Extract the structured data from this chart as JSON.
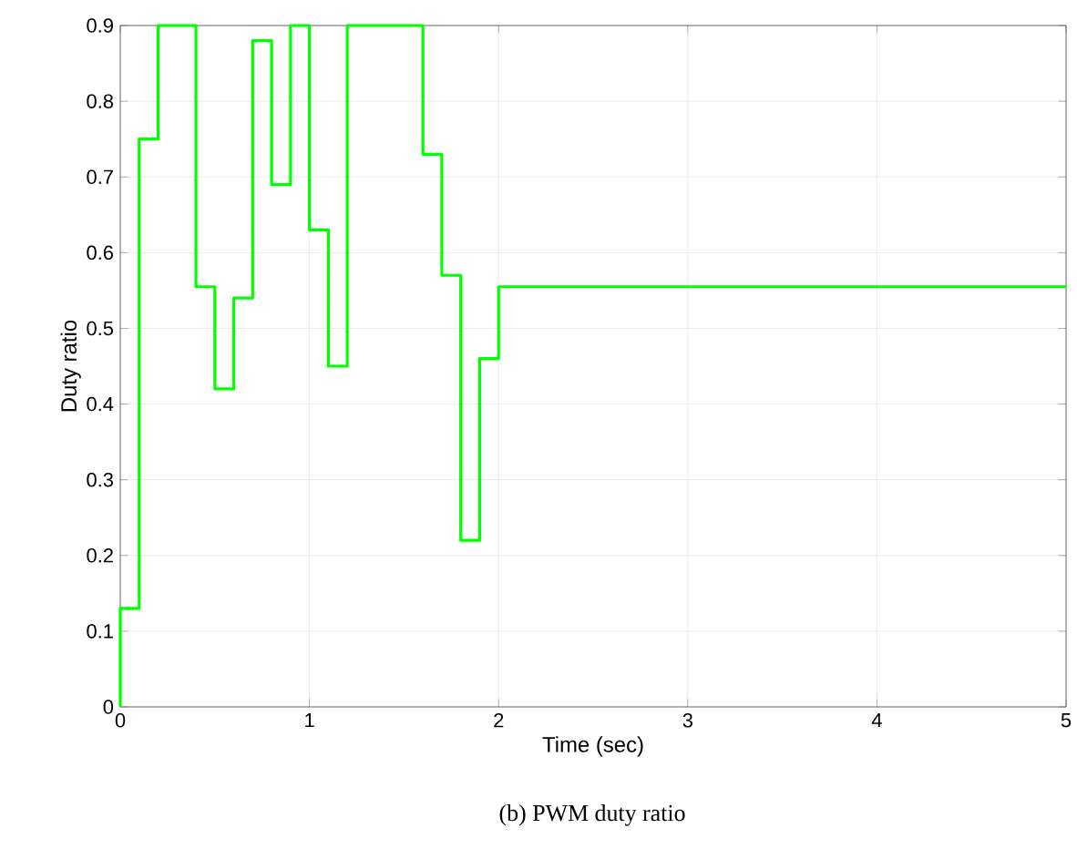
{
  "chart_data": {
    "type": "step",
    "xlabel": "Time (sec)",
    "ylabel": "Duty ratio",
    "annotations": [
      "(b) PWM duty ratio"
    ],
    "x": [
      0,
      0,
      0.1,
      0.2,
      0.4,
      0.5,
      0.6,
      0.7,
      0.8,
      0.9,
      1.0,
      1.1,
      1.2,
      1.6,
      1.7,
      1.8,
      1.9,
      2.0,
      5
    ],
    "values": [
      0,
      0.13,
      0.75,
      0.9,
      0.555,
      0.42,
      0.54,
      0.88,
      0.69,
      0.9,
      0.63,
      0.45,
      0.9,
      0.73,
      0.57,
      0.22,
      0.46,
      0.555,
      0.555
    ],
    "color": "#00ff00",
    "xlim": [
      0,
      5
    ],
    "xticks": [
      0,
      1,
      2,
      3,
      4,
      5
    ],
    "ylim": [
      0,
      0.9
    ],
    "yticks": [
      0,
      0.1,
      0.2,
      0.3,
      0.4,
      0.5,
      0.6,
      0.7,
      0.8,
      0.9
    ],
    "grid": true
  }
}
